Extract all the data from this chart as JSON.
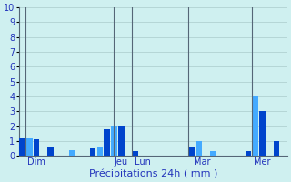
{
  "xlabel": "Précipitations 24h ( mm )",
  "background_color": "#cff0f0",
  "bar_color_dark": "#0044cc",
  "bar_color_light": "#44aaff",
  "ylim": [
    0,
    10
  ],
  "yticks": [
    0,
    1,
    2,
    3,
    4,
    5,
    6,
    7,
    8,
    9,
    10
  ],
  "day_labels": [
    "Dim",
    "Jeu",
    "Lun",
    "Mar",
    "Mer"
  ],
  "day_tick_positions": [
    2,
    14,
    17,
    25.5,
    34
  ],
  "separator_positions": [
    0.5,
    13.0,
    15.5,
    23.5,
    32.5
  ],
  "values": [
    1.2,
    1.2,
    1.1,
    0.0,
    0.6,
    0.0,
    0.0,
    0.4,
    0.0,
    0.0,
    0.5,
    0.6,
    1.8,
    2.0,
    2.0,
    0.0,
    0.3,
    0.0,
    0.0,
    0.0,
    0.0,
    0.0,
    0.0,
    0.0,
    0.6,
    1.0,
    0.0,
    0.3,
    0.0,
    0.0,
    0.0,
    0.0,
    0.3,
    4.0,
    3.0,
    0.0,
    1.0,
    0.0
  ],
  "num_bars": 38,
  "grid_color": "#aacccc",
  "tick_color": "#2233bb",
  "label_color": "#2233bb",
  "separator_color": "#556677",
  "tick_fontsize": 7,
  "xlabel_fontsize": 8
}
